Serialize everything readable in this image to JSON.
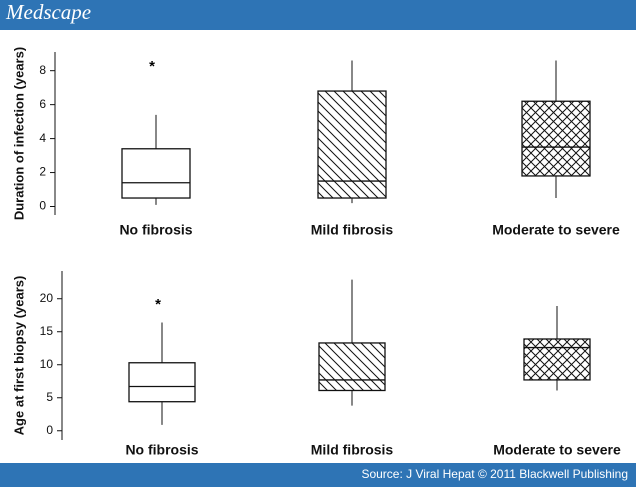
{
  "header": {
    "title": "Medscape"
  },
  "footer": {
    "source": "Source: J Viral Hepat © 2011 Blackwell Publishing"
  },
  "chart_data": [
    {
      "type": "box",
      "ylabel": "Duration of infection (years)",
      "categories": [
        "No fibrosis",
        "Mild fibrosis",
        "Moderate to severe"
      ],
      "fill_patterns": [
        "none",
        "diagonal",
        "crosshatch"
      ],
      "boxes": [
        {
          "low": 0.1,
          "q1": 0.5,
          "median": 1.4,
          "q3": 3.4,
          "high": 5.4,
          "outliers": [
            8.4
          ]
        },
        {
          "low": 0.2,
          "q1": 0.5,
          "median": 1.5,
          "q3": 6.8,
          "high": 8.6,
          "outliers": []
        },
        {
          "low": 0.5,
          "q1": 1.8,
          "median": 3.5,
          "q3": 6.2,
          "high": 8.6,
          "outliers": []
        }
      ],
      "ylim": [
        -0.5,
        9.1
      ],
      "yticks": [
        0,
        2,
        4,
        6,
        8
      ]
    },
    {
      "type": "box",
      "ylabel": "Age at first biopsy (years)",
      "categories": [
        "No fibrosis",
        "Mild fibrosis",
        "Moderate to severe"
      ],
      "fill_patterns": [
        "none",
        "diagonal",
        "crosshatch"
      ],
      "boxes": [
        {
          "low": 0.9,
          "q1": 4.4,
          "median": 6.7,
          "q3": 10.3,
          "high": 16.4,
          "outliers": [
            19.5
          ]
        },
        {
          "low": 3.8,
          "q1": 6.1,
          "median": 7.7,
          "q3": 13.3,
          "high": 22.9,
          "outliers": []
        },
        {
          "low": 6.1,
          "q1": 7.7,
          "median": 12.6,
          "q3": 13.9,
          "high": 18.9,
          "outliers": []
        }
      ],
      "ylim": [
        -1.4,
        24.2
      ],
      "yticks": [
        0,
        5,
        10,
        15,
        20
      ]
    }
  ]
}
